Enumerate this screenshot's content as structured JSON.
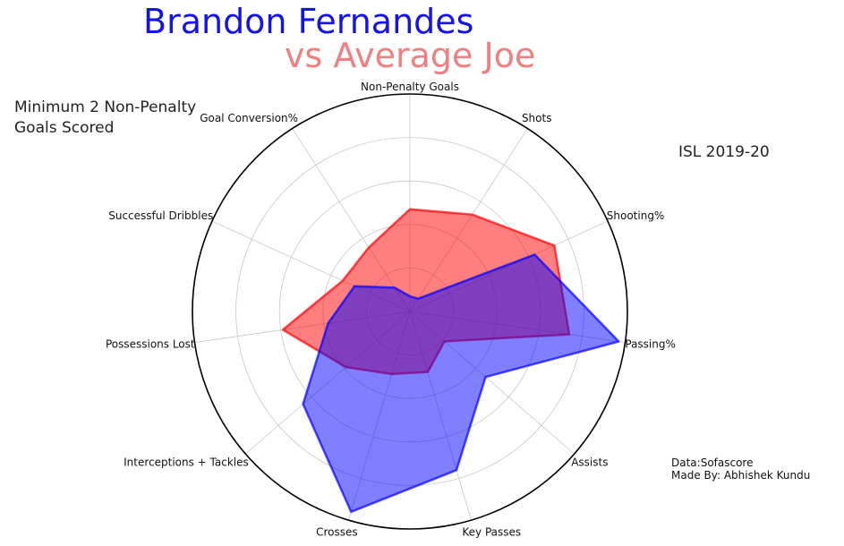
{
  "header": {
    "player_title": "Brandon Fernandes",
    "comparison_title": "vs Average Joe"
  },
  "notes": {
    "criteria_line1": "Minimum 2 Non-Penalty",
    "criteria_line2": "Goals Scored",
    "season": "ISL 2019-20",
    "source": "Data:Sofascore",
    "author": "Made By: Abhishek Kundu"
  },
  "chart_data": {
    "type": "radar",
    "categories": [
      "Non-Penalty Goals",
      "Shots",
      "Shooting%",
      "Passing%",
      "Assists",
      "Key Passes",
      "Crosses",
      "Interceptions + Tackles",
      "Possessions Lost",
      "Successful Dribbles",
      "Goal Conversion%"
    ],
    "rlim": [
      0,
      1
    ],
    "rings": 5,
    "grid": true,
    "series": [
      {
        "name": "Average Joe",
        "color": "#ff0000",
        "values": [
          0.47,
          0.53,
          0.73,
          0.74,
          0.21,
          0.29,
          0.3,
          0.39,
          0.59,
          0.34,
          0.35
        ]
      },
      {
        "name": "Brandon Fernandes",
        "color": "#0000ff",
        "values": [
          0.07,
          0.07,
          0.63,
          0.97,
          0.46,
          0.76,
          0.96,
          0.65,
          0.38,
          0.28,
          0.13
        ]
      }
    ]
  }
}
